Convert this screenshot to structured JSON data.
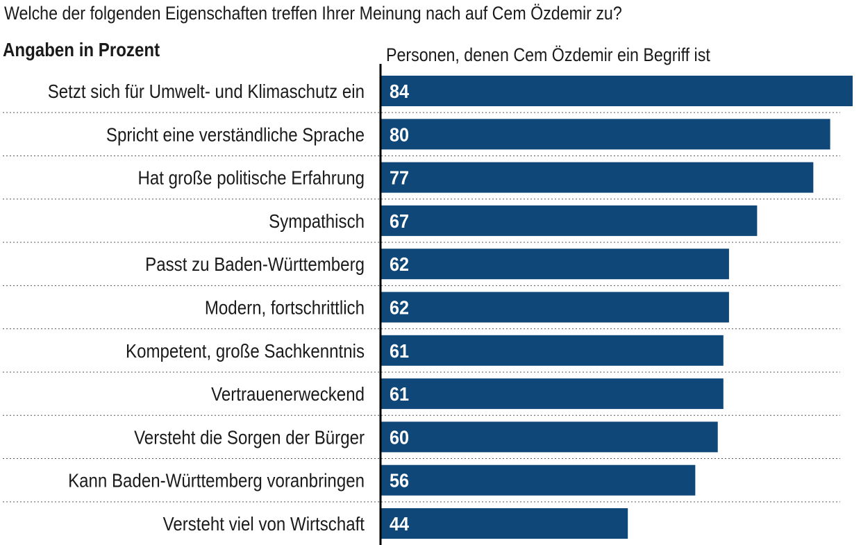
{
  "chart_data": {
    "type": "bar",
    "orientation": "horizontal",
    "title": "Welche der folgenden Eigenschaften treffen Ihrer Meinung nach auf Cem Özdemir zu?",
    "subtitle": "Angaben in Prozent",
    "series": [
      {
        "name": "Personen, denen Cem Özdemir ein Begriff ist",
        "values": [
          84,
          80,
          77,
          67,
          62,
          62,
          61,
          61,
          60,
          56,
          44
        ]
      }
    ],
    "categories": [
      "Setzt sich für Umwelt- und Klimaschutz ein",
      "Spricht eine verständliche Sprache",
      "Hat große politische Erfahrung",
      "Sympathisch",
      "Passt zu Baden-Württemberg",
      "Modern, fortschrittlich",
      "Kompetent, große Sachkenntnis",
      "Vertrauenerweckend",
      "Versteht die Sorgen der Bürger",
      "Kann Baden-Württemberg voranbringen",
      "Versteht viel von Wirtschaft"
    ],
    "value_labels": [
      "84",
      "80",
      "77",
      "67",
      "62",
      "62",
      "61",
      "61",
      "60",
      "56",
      "44"
    ],
    "xlim": [
      0,
      84
    ],
    "grid": false,
    "bar_color": "#0e4778"
  }
}
